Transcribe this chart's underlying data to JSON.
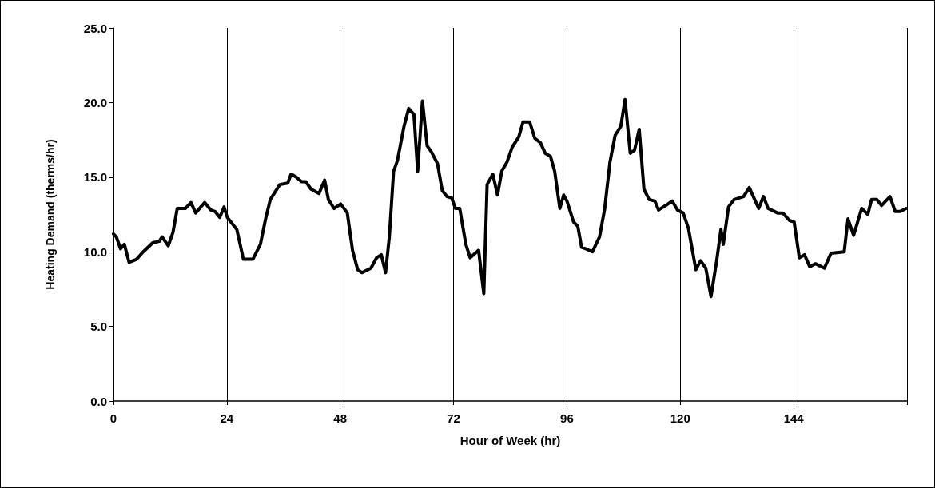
{
  "chart_data": {
    "type": "line",
    "xlabel": "Hour of Week (hr)",
    "ylabel": "Heating Demand (therms/hr)",
    "xlim": [
      0,
      168
    ],
    "xticks": [
      0,
      24,
      48,
      72,
      96,
      120,
      144,
      {
        "value": 168,
        "label": null
      }
    ],
    "ylim": [
      0,
      25
    ],
    "yticks": [
      {
        "value": 0,
        "label": "0.0"
      },
      {
        "value": 5,
        "label": "5.0"
      },
      {
        "value": 10,
        "label": "10.0"
      },
      {
        "value": 15,
        "label": "15.0"
      },
      {
        "value": 20,
        "label": "20.0"
      },
      {
        "value": 25,
        "label": "25.0"
      }
    ],
    "grid": "x",
    "marker": "none",
    "line_style": "solid",
    "x": [
      0,
      0.6,
      1.5,
      2.3,
      3.3,
      4.9,
      6.3,
      8.3,
      9.7,
      10.3,
      11.6,
      12.6,
      13.5,
      15.2,
      16.4,
      17.4,
      19.3,
      20.6,
      21.5,
      22.5,
      23.4,
      24.1,
      26.1,
      27.5,
      29.5,
      31.1,
      32.2,
      33.2,
      35.2,
      36.9,
      37.6,
      38.7,
      39.8,
      40.7,
      41.8,
      43.5,
      44.7,
      45.5,
      46.7,
      48.1,
      49.5,
      50.6,
      51.7,
      52.6,
      54.5,
      55.7,
      56.7,
      57.6,
      58.4,
      59.3,
      60.1,
      61.5,
      62.5,
      63.6,
      64.4,
      65.4,
      66.4,
      67.3,
      68.6,
      69.6,
      70.6,
      71.6,
      72.4,
      73.3,
      74.6,
      75.5,
      77.3,
      78.4,
      79.1,
      80.3,
      81.3,
      82.2,
      83.3,
      84.4,
      85.8,
      86.7,
      88.1,
      89.2,
      90.4,
      91.4,
      92.5,
      93.4,
      94.5,
      95.3,
      96.0,
      97.4,
      98.3,
      99.1,
      100.0,
      101.4,
      102.9,
      104.0,
      105.1,
      106.2,
      107.4,
      108.3,
      109.4,
      110.3,
      111.3,
      112.3,
      113.4,
      114.6,
      115.4,
      116.9,
      118.3,
      119.4,
      120.6,
      121.7,
      123.3,
      124.3,
      125.4,
      126.5,
      127.7,
      128.6,
      129.1,
      130.2,
      131.4,
      133.4,
      134.6,
      136.6,
      137.6,
      138.6,
      140.6,
      141.7,
      143.1,
      144.1,
      145.2,
      146.3,
      147.4,
      148.6,
      150.5,
      151.9,
      154.7,
      155.5,
      156.7,
      158.4,
      159.7,
      160.5,
      161.6,
      162.6,
      164.4,
      165.5,
      166.6,
      167.8
    ],
    "series": [
      {
        "color": "#000000",
        "values": [
          11.2,
          11.0,
          10.2,
          10.5,
          9.3,
          9.5,
          10.0,
          10.6,
          10.7,
          11.0,
          10.4,
          11.3,
          12.9,
          12.9,
          13.3,
          12.6,
          13.3,
          12.8,
          12.7,
          12.3,
          13.0,
          12.3,
          11.5,
          9.5,
          9.5,
          10.5,
          12.2,
          13.5,
          14.5,
          14.6,
          15.2,
          15.0,
          14.7,
          14.7,
          14.2,
          13.9,
          14.8,
          13.5,
          12.9,
          13.2,
          12.6,
          10.1,
          8.8,
          8.6,
          8.9,
          9.6,
          9.8,
          8.6,
          11.0,
          15.4,
          16.1,
          18.4,
          19.6,
          19.2,
          15.4,
          20.1,
          17.1,
          16.7,
          15.9,
          14.1,
          13.7,
          13.6,
          12.9,
          12.9,
          10.5,
          9.6,
          10.1,
          7.2,
          14.5,
          15.2,
          13.8,
          15.4,
          16.0,
          17.0,
          17.7,
          18.7,
          18.7,
          17.6,
          17.3,
          16.6,
          16.4,
          15.4,
          12.9,
          13.8,
          13.4,
          12.0,
          11.7,
          10.3,
          10.2,
          10.0,
          11.0,
          12.9,
          16.0,
          17.8,
          18.4,
          20.2,
          16.6,
          16.8,
          18.2,
          14.2,
          13.5,
          13.4,
          12.8,
          13.1,
          13.4,
          12.8,
          12.6,
          11.6,
          8.8,
          9.4,
          8.9,
          7.0,
          9.4,
          11.5,
          10.5,
          13.0,
          13.5,
          13.7,
          14.3,
          12.9,
          13.7,
          12.9,
          12.6,
          12.6,
          12.1,
          12.0,
          9.6,
          9.8,
          9.0,
          9.2,
          8.9,
          9.9,
          10.0,
          12.2,
          11.1,
          12.9,
          12.5,
          13.5,
          13.5,
          13.1,
          13.7,
          12.7,
          12.7,
          12.9
        ]
      }
    ]
  }
}
